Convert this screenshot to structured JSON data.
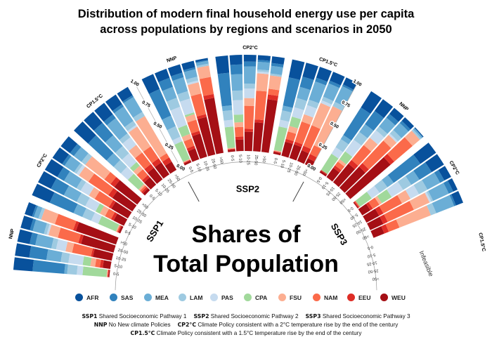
{
  "title": {
    "line1": "Distribution of modern final household energy use per capita",
    "line2": "across populations by regions and scenarios in 2050"
  },
  "center_text": {
    "line1": "Shares of",
    "line2": "Total Population"
  },
  "notes": {
    "lines": [
      [
        {
          "abbr": "SSP1",
          "text": "Shared Socioeconomic Pathway 1"
        },
        {
          "abbr": "SSP2",
          "text": "Shared Socioeconomic Pathway 2"
        },
        {
          "abbr": "SSP3",
          "text": "Shared Socioeconomic Pathway 3"
        }
      ],
      [
        {
          "abbr": "NNP",
          "text": "No New climate Policies"
        },
        {
          "abbr": "CP2°C",
          "text": "Climate Policy consistent with a 2°C temperature rise by the end of the century"
        }
      ],
      [
        {
          "abbr": "CP1.5°C",
          "text": "Climate Policy consistent with a 1.5°C temperature rise by the end of the century"
        }
      ]
    ]
  },
  "chart_data": {
    "type": "radial-stacked-bar",
    "value_axis": {
      "ticks": [
        "0.00",
        "0.25",
        "0.50",
        "0.75",
        "1.00"
      ],
      "range": [
        0,
        1
      ]
    },
    "regions": [
      "AFR",
      "SAS",
      "MEA",
      "LAM",
      "PAS",
      "CPA",
      "FSU",
      "NAM",
      "EEU",
      "WEU"
    ],
    "colors": {
      "AFR": "#08519c",
      "SAS": "#3182bd",
      "MEA": "#6baed6",
      "LAM": "#9ecae1",
      "PAS": "#c6dbef",
      "CPA": "#a1d99b",
      "FSU": "#fcae91",
      "NAM": "#fb6a4a",
      "EEU": "#de2d26",
      "WEU": "#a50f15"
    },
    "legend_position": "bottom",
    "income_groups": [
      "0-5",
      "5-10",
      "10-25",
      "25-50",
      ">50"
    ],
    "panels": [
      {
        "ssp": "SSP1",
        "scenarios": [
          {
            "name": "NNP",
            "bars": [
              [
                0.2,
                0.33,
                0.03,
                0.1,
                0.06,
                0.25,
                0.01,
                0,
                0.01,
                0.01
              ],
              [
                0.15,
                0.18,
                0.15,
                0.08,
                0.15,
                0.08,
                0.05,
                0.05,
                0.03,
                0.08
              ],
              [
                0.13,
                0.06,
                0.17,
                0.05,
                0.1,
                0,
                0.07,
                0.2,
                0.02,
                0.2
              ],
              [
                0.1,
                0.03,
                0.12,
                0.03,
                0.02,
                0,
                0.1,
                0.22,
                0.03,
                0.35
              ],
              [
                0.08,
                0.02,
                0.05,
                0.03,
                0,
                0,
                0.15,
                0.2,
                0.03,
                0.44
              ]
            ]
          },
          {
            "name": "CP2°C",
            "bars": [
              [
                0.2,
                0.27,
                0.1,
                0.1,
                0.08,
                0.2,
                0.01,
                0.01,
                0.01,
                0.02
              ],
              [
                0.15,
                0.15,
                0.15,
                0.1,
                0.12,
                0.05,
                0.06,
                0.07,
                0.03,
                0.12
              ],
              [
                0.15,
                0.08,
                0.15,
                0.05,
                0.1,
                0,
                0.07,
                0.17,
                0.03,
                0.2
              ],
              [
                0.12,
                0.03,
                0.12,
                0.03,
                0.03,
                0,
                0.12,
                0.25,
                0.05,
                0.25
              ],
              [
                0.12,
                0.05,
                0.1,
                0.05,
                0,
                0,
                0.25,
                0.08,
                0.05,
                0.3
              ]
            ]
          },
          {
            "name": "CP1.5°C",
            "bars": [
              [
                0.2,
                0.26,
                0.1,
                0.1,
                0.1,
                0.15,
                0.02,
                0.02,
                0.02,
                0.03
              ],
              [
                0.15,
                0.17,
                0.15,
                0.1,
                0.12,
                0.05,
                0.05,
                0.08,
                0.03,
                0.1
              ],
              [
                0.15,
                0.05,
                0.2,
                0.05,
                0.1,
                0,
                0.1,
                0.15,
                0.05,
                0.15
              ],
              [
                0.12,
                0.03,
                0.18,
                0.05,
                0.02,
                0,
                0.25,
                0.15,
                0.05,
                0.15
              ],
              [
                0.1,
                0.02,
                0.18,
                0.05,
                0,
                0,
                0.45,
                0.05,
                0.05,
                0.1
              ]
            ]
          }
        ]
      },
      {
        "ssp": "SSP2",
        "scenarios": [
          {
            "name": "NNP",
            "bars": [
              [
                0.17,
                0.3,
                0.12,
                0.12,
                0.05,
                0.2,
                0.01,
                0,
                0.01,
                0.02
              ],
              [
                0.1,
                0.1,
                0.12,
                0.1,
                0.2,
                0.1,
                0.05,
                0.08,
                0.03,
                0.12
              ],
              [
                0.09,
                0.05,
                0.15,
                0.08,
                0.15,
                0.02,
                0.06,
                0.12,
                0.03,
                0.25
              ],
              [
                0.07,
                0.02,
                0.08,
                0.04,
                0.02,
                0,
                0.12,
                0.22,
                0.03,
                0.4
              ],
              [
                0.02,
                0.01,
                0.03,
                0.02,
                0,
                0,
                0.12,
                0.18,
                0.04,
                0.58
              ]
            ]
          },
          {
            "name": "CP2°C",
            "bars": [
              [
                0.18,
                0.34,
                0.05,
                0.1,
                0.07,
                0.22,
                0.01,
                0,
                0.01,
                0.02
              ],
              [
                0.1,
                0.1,
                0.17,
                0.1,
                0.15,
                0.08,
                0.05,
                0.1,
                0.03,
                0.12
              ],
              [
                0.07,
                0.05,
                0.18,
                0.05,
                0.1,
                0,
                0.08,
                0.24,
                0.03,
                0.2
              ],
              [
                0.05,
                0.02,
                0.08,
                0.02,
                0.02,
                0,
                0.18,
                0.3,
                0.03,
                0.3
              ],
              [
                0.07,
                0.03,
                0.08,
                0.02,
                0,
                0,
                0.14,
                0.06,
                0.05,
                0.55
              ]
            ]
          },
          {
            "name": "CP1.5°C",
            "bars": [
              [
                0.19,
                0.3,
                0.05,
                0.1,
                0.07,
                0.25,
                0.01,
                0,
                0.01,
                0.02
              ],
              [
                0.15,
                0.11,
                0.12,
                0.1,
                0.1,
                0.1,
                0.06,
                0.08,
                0.03,
                0.15
              ],
              [
                0.12,
                0.04,
                0.2,
                0.06,
                0.1,
                0,
                0.08,
                0.22,
                0.03,
                0.15
              ],
              [
                0.1,
                0.03,
                0.15,
                0.04,
                0.03,
                0,
                0.25,
                0.23,
                0.05,
                0.12
              ],
              [
                0.08,
                0.02,
                0.18,
                0.05,
                0,
                0,
                0.45,
                0.1,
                0.05,
                0.07
              ]
            ]
          }
        ]
      },
      {
        "ssp": "SSP3",
        "scenarios": [
          {
            "name": "NNP",
            "bars": [
              [
                0.2,
                0.34,
                0.05,
                0.1,
                0.08,
                0.2,
                0,
                0,
                0.01,
                0.02
              ],
              [
                0.15,
                0.17,
                0.1,
                0.1,
                0.15,
                0.1,
                0.03,
                0.05,
                0.03,
                0.12
              ],
              [
                0.08,
                0.05,
                0.12,
                0.05,
                0.1,
                0,
                0.1,
                0.2,
                0.05,
                0.25
              ],
              [
                0.05,
                0.03,
                0.1,
                0.05,
                0.02,
                0,
                0.08,
                0.32,
                0.05,
                0.3
              ],
              [
                0.01,
                0,
                0.02,
                0.02,
                0,
                0,
                0.1,
                0.25,
                0.05,
                0.55
              ]
            ]
          },
          {
            "name": "CP2°C",
            "bars": [
              [
                0.2,
                0.34,
                0.08,
                0.1,
                0.1,
                0.15,
                0,
                0.01,
                0.01,
                0.01
              ],
              [
                0.15,
                0.15,
                0.1,
                0.1,
                0.14,
                0.12,
                0.03,
                0.08,
                0.03,
                0.1
              ],
              [
                0.08,
                0.05,
                0.15,
                0.1,
                0.1,
                0,
                0.1,
                0.22,
                0.05,
                0.15
              ],
              [
                0.05,
                0.05,
                0.18,
                0.02,
                0.02,
                0,
                0.18,
                0.3,
                0.05,
                0.15
              ],
              [
                0.08,
                0.02,
                0.2,
                0.06,
                0,
                0,
                0.35,
                0.12,
                0.05,
                0.12
              ]
            ]
          },
          {
            "name": "CP1.5°C",
            "bars": [],
            "note": "Infeasible"
          }
        ]
      }
    ]
  }
}
